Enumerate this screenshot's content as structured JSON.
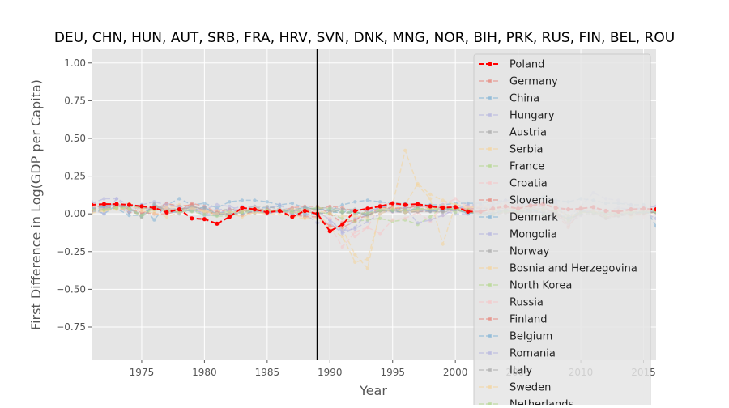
{
  "chart_data": {
    "type": "line",
    "title": "DEU, CHN, HUN, AUT, SRB, FRA, HRV, SVN, DNK, MNG, NOR, BIH, PRK, RUS, FIN, BEL, ROU",
    "xlabel": "Year",
    "ylabel": "First Difference in Log(GDP per Capita)",
    "xlim": [
      1971,
      2016
    ],
    "ylim": [
      -0.97,
      1.09
    ],
    "x_ticks": [
      1975,
      1980,
      1985,
      1990,
      1995,
      2000,
      2005,
      2010,
      2015
    ],
    "y_ticks": [
      -0.75,
      -0.5,
      -0.25,
      0.0,
      0.25,
      0.5,
      0.75,
      1.0
    ],
    "x_tick_labels": [
      "1975",
      "1980",
      "1985",
      "1990",
      "1995",
      "2000",
      "2005",
      "2010",
      "2015"
    ],
    "y_tick_labels": [
      "−0.75",
      "−0.50",
      "−0.25",
      "0.00",
      "0.25",
      "0.50",
      "0.75",
      "1.00"
    ],
    "vline_x": 1989,
    "grid": true,
    "legend_position": "upper-right",
    "x": [
      1971,
      1972,
      1973,
      1974,
      1975,
      1976,
      1977,
      1978,
      1979,
      1980,
      1981,
      1982,
      1983,
      1984,
      1985,
      1986,
      1987,
      1988,
      1989,
      1990,
      1991,
      1992,
      1993,
      1994,
      1995,
      1996,
      1997,
      1998,
      1999,
      2000,
      2001,
      2002,
      2003,
      2004,
      2005,
      2006,
      2007,
      2008,
      2009,
      2010,
      2011,
      2012,
      2013,
      2014,
      2015,
      2016
    ],
    "series": [
      {
        "name": "Poland",
        "color": "#ff0000",
        "highlight": true,
        "values": [
          0.06,
          0.065,
          0.065,
          0.06,
          0.05,
          0.04,
          0.01,
          0.03,
          -0.03,
          -0.035,
          -0.065,
          -0.02,
          0.04,
          0.03,
          0.01,
          0.02,
          -0.02,
          0.02,
          0.0,
          -0.115,
          -0.07,
          0.02,
          0.035,
          0.05,
          0.07,
          0.06,
          0.065,
          0.05,
          0.04,
          0.045,
          0.015,
          0.015,
          0.035,
          0.05,
          0.035,
          0.055,
          0.065,
          0.04,
          0.03,
          0.035,
          0.045,
          0.02,
          0.015,
          0.03,
          0.035,
          0.03
        ]
      },
      {
        "name": "Germany",
        "color": "#e8837a",
        "values": [
          0.03,
          0.04,
          0.045,
          0.01,
          0.0,
          0.05,
          0.03,
          0.03,
          0.04,
          0.01,
          0.0,
          -0.01,
          0.02,
          0.03,
          0.02,
          0.02,
          0.015,
          0.03,
          0.03,
          0.05,
          0.04,
          0.015,
          -0.01,
          0.02,
          0.015,
          0.01,
          0.015,
          0.02,
          0.02,
          0.03,
          0.015,
          0.0,
          -0.005,
          0.01,
          0.01,
          0.035,
          0.03,
          0.01,
          -0.055,
          0.04,
          0.04,
          0.005,
          0.005,
          0.015,
          0.015,
          0.02
        ]
      },
      {
        "name": "China",
        "color": "#7fb2d5",
        "values": [
          0.04,
          0.0,
          0.06,
          0.01,
          0.06,
          -0.04,
          0.06,
          0.1,
          0.06,
          0.07,
          0.04,
          0.08,
          0.09,
          0.09,
          0.08,
          0.06,
          0.07,
          0.04,
          0.03,
          0.02,
          0.06,
          0.08,
          0.09,
          0.08,
          0.07,
          0.07,
          0.06,
          0.06,
          0.06,
          0.07,
          0.07,
          0.07,
          0.08,
          0.09,
          0.09,
          0.1,
          0.11,
          0.09,
          0.08,
          0.1,
          0.09,
          0.07,
          0.07,
          0.06,
          0.06,
          -0.08
        ]
      },
      {
        "name": "Hungary",
        "color": "#b3b3e0",
        "values": [
          0.07,
          0.1,
          0.1,
          0.06,
          0.05,
          0.03,
          0.07,
          0.04,
          0.02,
          0.01,
          0.03,
          0.03,
          0.01,
          0.02,
          0.0,
          0.015,
          0.035,
          0.0,
          0.02,
          -0.04,
          -0.12,
          -0.03,
          -0.01,
          0.03,
          0.015,
          0.01,
          0.045,
          0.05,
          0.035,
          0.045,
          0.04,
          0.045,
          0.04,
          0.05,
          0.045,
          0.04,
          0.005,
          0.01,
          -0.065,
          0.01,
          0.02,
          -0.01,
          0.02,
          0.04,
          0.035,
          0.025
        ]
      },
      {
        "name": "Austria",
        "color": "#aaaaaa",
        "values": [
          0.05,
          0.06,
          0.05,
          0.04,
          -0.005,
          0.045,
          0.045,
          0.0,
          0.055,
          0.02,
          0.0,
          0.02,
          0.025,
          0.005,
          0.02,
          0.02,
          0.015,
          0.03,
          0.04,
          0.04,
          0.03,
          0.01,
          0.0,
          0.02,
          0.02,
          0.02,
          0.02,
          0.03,
          0.03,
          0.03,
          0.0,
          0.01,
          0.005,
          0.02,
          0.015,
          0.03,
          0.035,
          0.01,
          -0.04,
          0.015,
          0.025,
          0.0,
          -0.005,
          0.0,
          0.005,
          0.01
        ]
      },
      {
        "name": "Serbia",
        "color": "#f5d49a",
        "values": [
          0.05,
          0.03,
          0.04,
          0.07,
          0.03,
          0.04,
          0.06,
          0.06,
          0.05,
          0.0,
          0.0,
          0.0,
          -0.01,
          0.01,
          0.0,
          0.02,
          -0.01,
          -0.02,
          0.0,
          -0.08,
          -0.1,
          -0.27,
          -0.36,
          0.02,
          0.06,
          0.42,
          0.19,
          0.1,
          -0.2,
          0.06,
          0.05,
          0.04,
          0.03,
          0.08,
          0.06,
          0.05,
          0.06,
          0.05,
          -0.03,
          0.01,
          0.02,
          -0.01,
          0.03,
          -0.02,
          0.01,
          0.03
        ]
      },
      {
        "name": "France",
        "color": "#b2d78a",
        "values": [
          0.04,
          0.035,
          0.05,
          0.03,
          -0.02,
          0.04,
          0.03,
          0.03,
          0.03,
          0.01,
          0.005,
          0.015,
          0.005,
          0.01,
          0.01,
          0.02,
          0.02,
          0.04,
          0.035,
          0.02,
          0.005,
          0.01,
          -0.01,
          0.02,
          0.02,
          0.01,
          0.02,
          0.03,
          0.03,
          0.035,
          0.015,
          0.005,
          0.0,
          0.02,
          0.01,
          0.02,
          0.02,
          -0.005,
          -0.035,
          0.015,
          0.015,
          0.0,
          0.0,
          0.0,
          0.01,
          0.01
        ]
      },
      {
        "name": "Croatia",
        "color": "#f7c5c7",
        "values": [
          0.05,
          0.04,
          0.04,
          0.06,
          0.04,
          0.03,
          0.05,
          0.05,
          0.06,
          0.02,
          0.0,
          0.0,
          -0.01,
          0.01,
          0.0,
          0.02,
          -0.02,
          -0.01,
          -0.02,
          -0.08,
          -0.22,
          -0.12,
          -0.09,
          0.06,
          0.07,
          0.06,
          0.07,
          0.03,
          -0.01,
          0.03,
          0.04,
          0.05,
          0.05,
          0.04,
          0.04,
          0.05,
          0.05,
          0.02,
          -0.07,
          -0.01,
          0.0,
          -0.02,
          -0.005,
          0.0,
          0.02,
          0.03
        ]
      },
      {
        "name": "Slovenia",
        "color": "#e8837a",
        "values": [
          0.06,
          0.05,
          0.05,
          0.06,
          0.04,
          0.03,
          0.07,
          0.05,
          0.06,
          0.02,
          0.0,
          0.0,
          -0.01,
          0.02,
          0.01,
          0.02,
          0.0,
          -0.02,
          -0.02,
          -0.08,
          -0.09,
          -0.05,
          0.03,
          0.05,
          0.04,
          0.04,
          0.05,
          0.04,
          0.05,
          0.04,
          0.03,
          0.04,
          0.03,
          0.04,
          0.04,
          0.06,
          0.07,
          0.03,
          -0.08,
          0.01,
          0.01,
          -0.03,
          -0.01,
          0.03,
          0.02,
          0.03
        ]
      },
      {
        "name": "Denmark",
        "color": "#7fb2d5",
        "values": [
          0.02,
          0.045,
          0.035,
          -0.01,
          -0.01,
          0.06,
          0.01,
          0.01,
          0.03,
          -0.01,
          -0.01,
          0.03,
          0.025,
          0.04,
          0.04,
          0.05,
          0.0,
          0.0,
          0.0,
          0.01,
          0.01,
          0.01,
          0.0,
          0.05,
          0.03,
          0.025,
          0.03,
          0.02,
          0.025,
          0.03,
          0.005,
          0.0,
          0.0,
          0.02,
          0.02,
          0.035,
          0.005,
          -0.01,
          -0.055,
          0.015,
          0.01,
          -0.005,
          -0.005,
          0.01,
          0.01,
          0.02
        ]
      },
      {
        "name": "Mongolia",
        "color": "#b3b3e0",
        "values": [
          0.03,
          0.0,
          0.1,
          0.02,
          0.04,
          0.03,
          0.02,
          0.01,
          0.03,
          0.03,
          0.06,
          0.05,
          0.02,
          0.03,
          0.03,
          0.06,
          0.01,
          0.02,
          0.02,
          -0.04,
          -0.11,
          -0.1,
          -0.05,
          0.0,
          0.03,
          0.02,
          0.02,
          0.02,
          0.02,
          0.0,
          0.0,
          0.03,
          0.05,
          0.09,
          0.06,
          0.07,
          0.08,
          0.07,
          -0.02,
          0.05,
          0.14,
          0.1,
          0.09,
          0.06,
          0.01,
          -0.03
        ]
      },
      {
        "name": "Norway",
        "color": "#aaaaaa",
        "values": [
          0.04,
          0.05,
          0.035,
          0.05,
          0.04,
          0.05,
          0.03,
          0.035,
          0.04,
          0.04,
          0.0,
          0.0,
          0.03,
          0.05,
          0.05,
          0.03,
          0.01,
          -0.01,
          0.0,
          0.01,
          0.03,
          0.03,
          0.02,
          0.04,
          0.03,
          0.04,
          0.04,
          0.02,
          0.01,
          0.025,
          0.015,
          0.01,
          0.0,
          0.03,
          0.015,
          0.01,
          0.01,
          -0.01,
          -0.03,
          -0.005,
          0.0,
          0.01,
          0.0,
          0.01,
          0.01,
          0.01
        ]
      },
      {
        "name": "Bosnia and Herzegovina",
        "color": "#f5d49a",
        "values": [
          0.03,
          0.02,
          0.03,
          0.05,
          0.03,
          0.02,
          0.04,
          0.05,
          0.04,
          0.02,
          0.0,
          0.0,
          -0.02,
          0.01,
          0.0,
          0.0,
          -0.02,
          -0.03,
          -0.03,
          -0.1,
          -0.15,
          -0.32,
          -0.3,
          0.0,
          0.03,
          0.06,
          0.2,
          0.13,
          0.09,
          0.06,
          0.04,
          0.05,
          0.04,
          0.05,
          0.04,
          0.05,
          0.06,
          0.05,
          -0.02,
          0.01,
          0.01,
          -0.01,
          0.02,
          0.01,
          0.03,
          0.03
        ]
      },
      {
        "name": "North Korea",
        "color": "#b2d78a",
        "values": [
          0.02,
          0.03,
          0.04,
          0.05,
          0.04,
          0.03,
          0.02,
          0.03,
          0.02,
          0.02,
          0.02,
          0.03,
          0.02,
          0.02,
          0.02,
          0.02,
          0.01,
          0.01,
          0.01,
          0.0,
          -0.03,
          -0.05,
          -0.04,
          -0.03,
          -0.05,
          -0.04,
          -0.07,
          -0.02,
          0.05,
          0.01,
          0.03,
          0.01,
          0.02,
          0.02,
          0.03,
          -0.01,
          -0.01,
          0.03,
          -0.01,
          0.0,
          0.01,
          0.01,
          0.01,
          0.01,
          0.0,
          0.01
        ]
      },
      {
        "name": "Russia",
        "color": "#f7c5c7",
        "values": [
          0.05,
          0.03,
          0.07,
          0.04,
          0.04,
          0.04,
          0.03,
          0.03,
          0.02,
          0.02,
          0.02,
          0.03,
          0.03,
          0.02,
          0.01,
          0.02,
          0.01,
          0.02,
          0.01,
          -0.03,
          -0.05,
          -0.15,
          -0.09,
          -0.13,
          -0.04,
          -0.03,
          0.01,
          -0.05,
          0.06,
          0.1,
          0.05,
          0.05,
          0.07,
          0.07,
          0.06,
          0.08,
          0.08,
          0.05,
          -0.08,
          0.04,
          0.04,
          0.03,
          0.01,
          0.0,
          -0.02,
          0.0
        ]
      },
      {
        "name": "Finland",
        "color": "#e8837a",
        "values": [
          0.02,
          0.07,
          0.06,
          0.03,
          0.01,
          0.0,
          0.0,
          0.02,
          0.07,
          0.05,
          0.01,
          0.03,
          0.02,
          0.03,
          0.03,
          0.02,
          0.04,
          0.05,
          0.05,
          0.0,
          -0.06,
          -0.04,
          -0.01,
          0.04,
          0.04,
          0.03,
          0.06,
          0.05,
          0.04,
          0.05,
          0.02,
          0.01,
          0.02,
          0.04,
          0.03,
          0.04,
          0.05,
          0.0,
          -0.09,
          0.03,
          0.02,
          -0.02,
          -0.01,
          -0.005,
          0.0,
          0.015
        ]
      },
      {
        "name": "Belgium",
        "color": "#7fb2d5",
        "values": [
          0.035,
          0.05,
          0.06,
          0.04,
          -0.015,
          0.05,
          0.005,
          0.025,
          0.02,
          0.045,
          -0.005,
          0.005,
          0.0,
          0.02,
          0.01,
          0.015,
          0.02,
          0.045,
          0.03,
          0.03,
          0.015,
          0.015,
          -0.015,
          0.03,
          0.02,
          0.01,
          0.035,
          0.02,
          0.03,
          0.035,
          0.005,
          0.01,
          0.005,
          0.03,
          0.015,
          0.02,
          0.025,
          0.0,
          -0.03,
          0.02,
          0.01,
          -0.005,
          -0.005,
          0.01,
          0.01,
          0.01
        ]
      },
      {
        "name": "Romania",
        "color": "#b3b3e0",
        "values": [
          0.08,
          0.06,
          0.06,
          0.05,
          0.06,
          0.08,
          0.06,
          0.05,
          0.04,
          0.0,
          0.0,
          0.03,
          0.05,
          0.05,
          0.0,
          0.02,
          0.0,
          0.0,
          -0.06,
          -0.06,
          -0.13,
          -0.09,
          0.01,
          0.04,
          0.07,
          0.04,
          -0.06,
          -0.04,
          -0.01,
          0.03,
          0.06,
          0.06,
          0.06,
          0.09,
          0.05,
          0.08,
          0.07,
          0.08,
          -0.06,
          -0.01,
          0.03,
          0.02,
          0.04,
          0.03,
          0.04,
          0.05
        ]
      },
      {
        "name": "Italy",
        "color": "#aaaaaa",
        "values": [
          0.01,
          0.03,
          0.065,
          0.04,
          -0.025,
          0.065,
          0.02,
          0.03,
          0.05,
          0.03,
          0.005,
          0.0,
          0.01,
          0.03,
          0.025,
          0.025,
          0.03,
          0.04,
          0.03,
          0.02,
          0.01,
          0.0,
          -0.01,
          0.02,
          0.025,
          0.01,
          0.015,
          0.015,
          0.015,
          0.035,
          0.015,
          0.0,
          -0.005,
          0.005,
          0.0,
          0.015,
          0.01,
          -0.015,
          -0.055,
          0.015,
          0.005,
          -0.03,
          -0.015,
          0.0,
          0.01,
          0.01
        ]
      },
      {
        "name": "Sweden",
        "color": "#f5d49a",
        "values": [
          0.005,
          0.02,
          0.035,
          0.03,
          0.02,
          0.005,
          -0.02,
          0.01,
          0.035,
          0.015,
          0.0,
          0.01,
          0.015,
          0.04,
          0.02,
          0.025,
          0.03,
          0.025,
          0.02,
          0.005,
          -0.015,
          -0.015,
          -0.025,
          0.035,
          0.035,
          0.01,
          0.025,
          0.04,
          0.04,
          0.04,
          0.01,
          0.02,
          0.02,
          0.04,
          0.03,
          0.04,
          0.025,
          -0.01,
          -0.055,
          0.05,
          0.02,
          -0.01,
          0.0,
          0.015,
          0.03,
          0.02
        ]
      },
      {
        "name": "Netherlands",
        "color": "#b2d78a",
        "values": [
          0.03,
          0.025,
          0.04,
          0.035,
          -0.01,
          0.04,
          0.015,
          0.015,
          0.015,
          -0.005,
          -0.015,
          -0.015,
          0.01,
          0.025,
          0.025,
          0.02,
          0.01,
          0.02,
          0.04,
          0.035,
          0.015,
          0.01,
          0.005,
          0.025,
          0.025,
          0.025,
          0.035,
          0.035,
          0.035,
          0.035,
          0.015,
          -0.005,
          -0.005,
          0.015,
          0.015,
          0.03,
          0.035,
          0.015,
          -0.04,
          0.01,
          0.01,
          -0.015,
          -0.005,
          0.01,
          0.015,
          0.015
        ]
      }
    ]
  }
}
